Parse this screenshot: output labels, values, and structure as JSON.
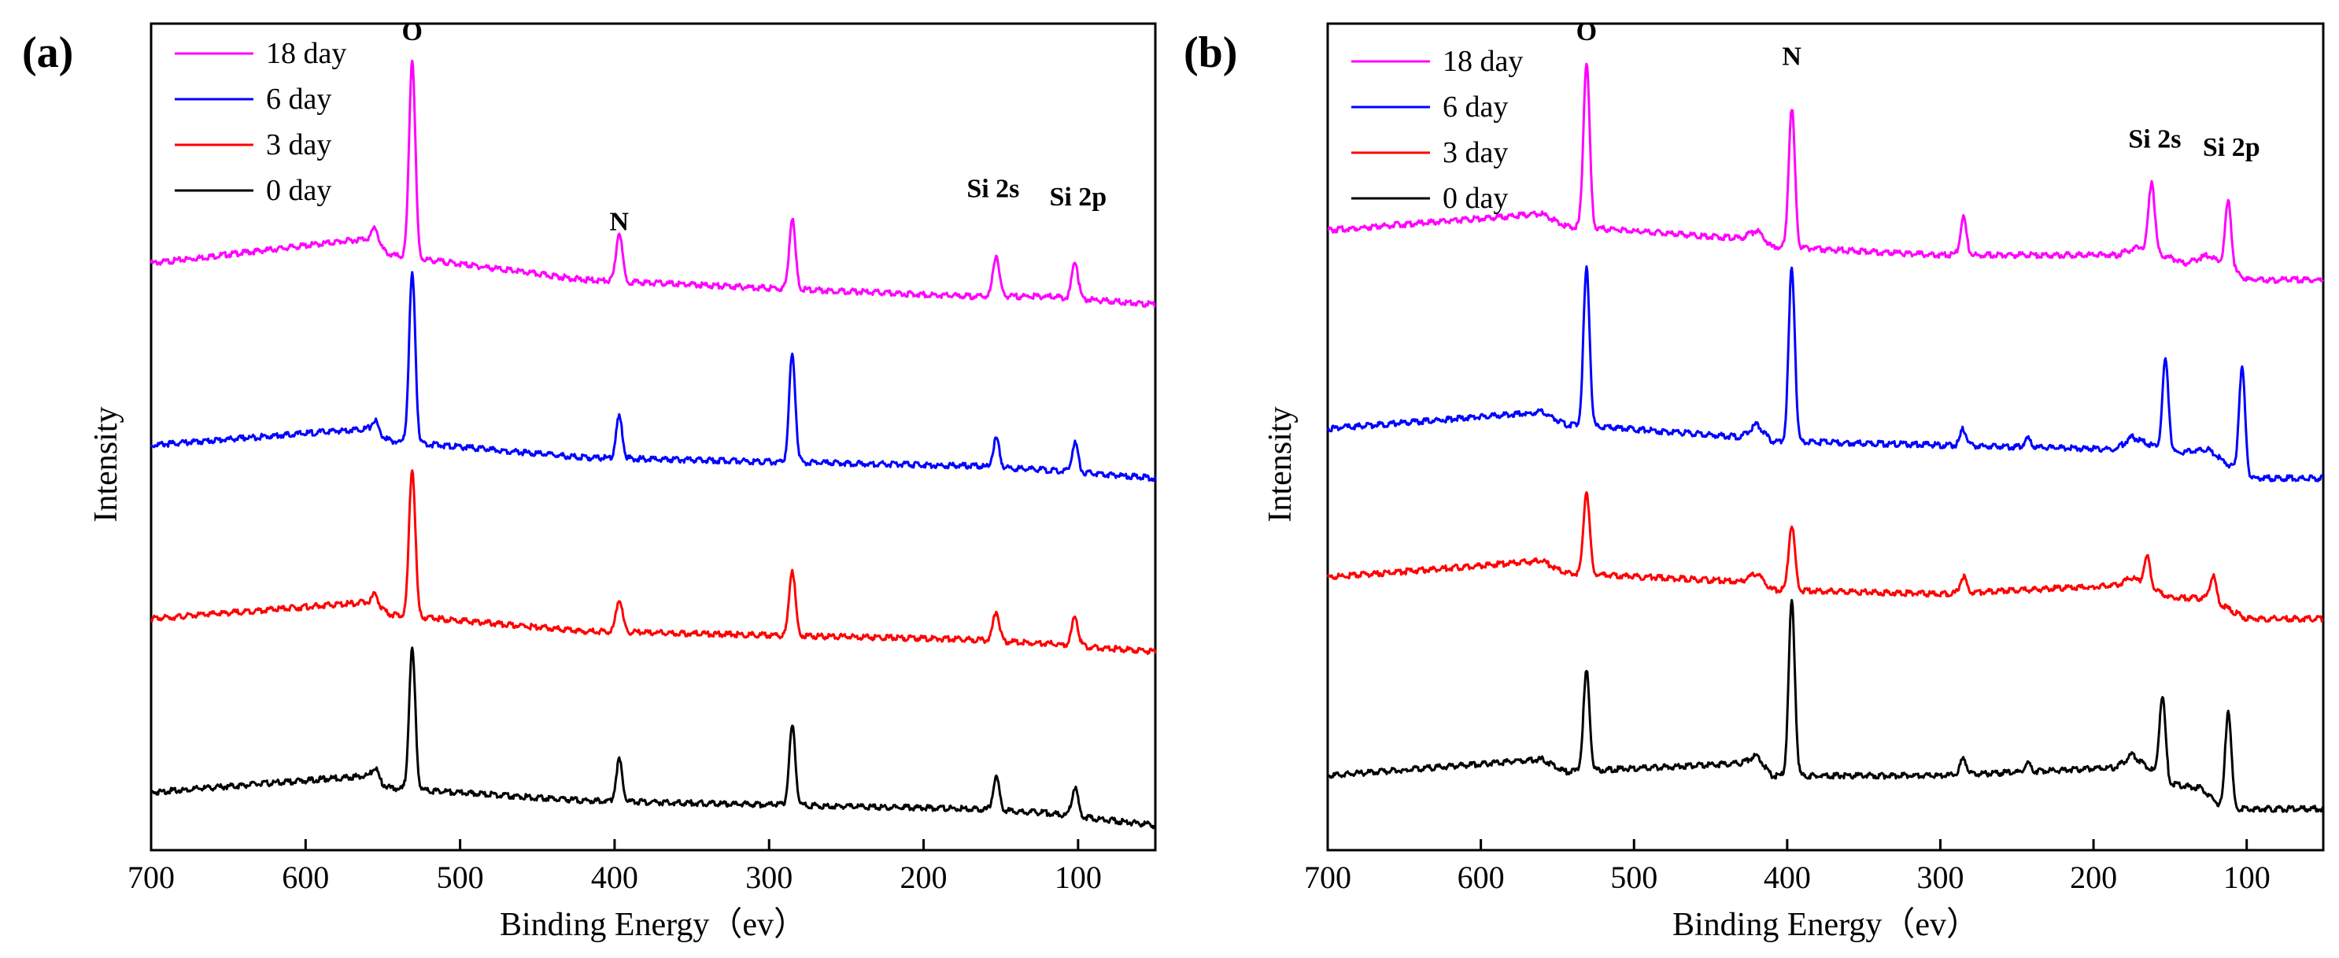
{
  "chart_data": [
    {
      "type": "line",
      "panel_label": "(a)",
      "xlabel": "Binding Energy（ev）",
      "ylabel": "Intensity",
      "xlim": [
        700,
        50
      ],
      "x_reversed": true,
      "ylim": [
        0,
        100
      ],
      "y_ticks_shown": false,
      "x_ticks": [
        700,
        600,
        500,
        400,
        300,
        200,
        100
      ],
      "x_tick_labels": [
        "700",
        "600",
        "500",
        "400",
        "300",
        "200",
        "100"
      ],
      "legend": {
        "position": "top-left",
        "entries": [
          "18 day",
          "6 day",
          "3 day",
          "0 day"
        ]
      },
      "series": [
        {
          "name": "18 day",
          "color": "#ff00ff",
          "baseline": [
            [
              700,
              71
            ],
            [
              560,
              74
            ],
            [
              545,
              72
            ],
            [
              420,
              69
            ],
            [
              300,
              68
            ],
            [
              170,
              67
            ],
            [
              120,
              67
            ],
            [
              50,
              66
            ]
          ],
          "peaks": [
            [
              531,
              24
            ],
            [
              555,
              2
            ],
            [
              397,
              6
            ],
            [
              285,
              8.5
            ],
            [
              153,
              5
            ],
            [
              102,
              4.5
            ]
          ]
        },
        {
          "name": "6 day",
          "color": "#0000ff",
          "baseline": [
            [
              700,
              49
            ],
            [
              560,
              51
            ],
            [
              545,
              49.5
            ],
            [
              420,
              47.5
            ],
            [
              300,
              47
            ],
            [
              170,
              46.5
            ],
            [
              120,
              46
            ],
            [
              50,
              45
            ]
          ],
          "peaks": [
            [
              531,
              20.5
            ],
            [
              555,
              1.5
            ],
            [
              397,
              5
            ],
            [
              285,
              13
            ],
            [
              153,
              3.5
            ],
            [
              102,
              3.5
            ]
          ]
        },
        {
          "name": "3 day",
          "color": "#ff0000",
          "baseline": [
            [
              700,
              28
            ],
            [
              560,
              30
            ],
            [
              545,
              28.5
            ],
            [
              420,
              26.5
            ],
            [
              300,
              26
            ],
            [
              170,
              25.5
            ],
            [
              120,
              25
            ],
            [
              50,
              24
            ]
          ],
          "peaks": [
            [
              531,
              18
            ],
            [
              555,
              1.5
            ],
            [
              397,
              4
            ],
            [
              285,
              8
            ],
            [
              153,
              3.5
            ],
            [
              102,
              3.5
            ]
          ]
        },
        {
          "name": "0 day",
          "color": "#000000",
          "baseline": [
            [
              700,
              7
            ],
            [
              560,
              9
            ],
            [
              545,
              7.5
            ],
            [
              420,
              6
            ],
            [
              300,
              5.5
            ],
            [
              170,
              5
            ],
            [
              120,
              4.5
            ],
            [
              50,
              3
            ]
          ],
          "peaks": [
            [
              531,
              17
            ],
            [
              555,
              1.5
            ],
            [
              397,
              5
            ],
            [
              285,
              9.5
            ],
            [
              153,
              4
            ],
            [
              102,
              3.5
            ]
          ]
        }
      ],
      "annotations": [
        {
          "text": "O",
          "x": 531,
          "y": 98
        },
        {
          "text": "N",
          "x": 397,
          "y": 75
        },
        {
          "text": "Si 2s",
          "x": 155,
          "y": 79
        },
        {
          "text": "Si 2p",
          "x": 100,
          "y": 78
        }
      ]
    },
    {
      "type": "line",
      "panel_label": "(b)",
      "xlabel": "Binding Energy（ev）",
      "ylabel": "Intensity",
      "xlim": [
        700,
        50
      ],
      "x_reversed": true,
      "ylim": [
        0,
        100
      ],
      "y_ticks_shown": false,
      "x_ticks": [
        700,
        600,
        500,
        400,
        300,
        200,
        100
      ],
      "x_tick_labels": [
        "700",
        "600",
        "500",
        "400",
        "300",
        "200",
        "100"
      ],
      "legend": {
        "position": "top-left",
        "entries": [
          "18 day",
          "6 day",
          "3 day",
          "0 day"
        ]
      },
      "series": [
        {
          "name": "18 day",
          "color": "#ff00ff",
          "baseline": [
            [
              700,
              75
            ],
            [
              560,
              77
            ],
            [
              545,
              75.5
            ],
            [
              430,
              74
            ],
            [
              420,
              75
            ],
            [
              410,
              73
            ],
            [
              300,
              72
            ],
            [
              185,
              72
            ],
            [
              170,
              73
            ],
            [
              140,
              71
            ],
            [
              125,
              72
            ],
            [
              100,
              69
            ],
            [
              50,
              69
            ]
          ],
          "peaks": [
            [
              531,
              20
            ],
            [
              397,
              17
            ],
            [
              285,
              4.5
            ],
            [
              162,
              8.5
            ],
            [
              112,
              8
            ]
          ]
        },
        {
          "name": "6 day",
          "color": "#0000ff",
          "baseline": [
            [
              700,
              51
            ],
            [
              560,
              53
            ],
            [
              545,
              51.5
            ],
            [
              430,
              50
            ],
            [
              420,
              51.5
            ],
            [
              410,
              49.5
            ],
            [
              300,
              49
            ],
            [
              185,
              48.5
            ],
            [
              175,
              50
            ],
            [
              150,
              48
            ],
            [
              125,
              48.5
            ],
            [
              100,
              45
            ],
            [
              50,
              45
            ]
          ],
          "peaks": [
            [
              531,
              19
            ],
            [
              397,
              21
            ],
            [
              285,
              2
            ],
            [
              243,
              1
            ],
            [
              153,
              11
            ],
            [
              103,
              13
            ]
          ]
        },
        {
          "name": "3 day",
          "color": "#ff0000",
          "baseline": [
            [
              700,
              33
            ],
            [
              560,
              35
            ],
            [
              545,
              33.5
            ],
            [
              430,
              32.5
            ],
            [
              420,
              33.5
            ],
            [
              410,
              31.5
            ],
            [
              300,
              31
            ],
            [
              185,
              32
            ],
            [
              175,
              33
            ],
            [
              150,
              30.5
            ],
            [
              125,
              30.5
            ],
            [
              100,
              28
            ],
            [
              50,
              28
            ]
          ],
          "peaks": [
            [
              531,
              10
            ],
            [
              397,
              8
            ],
            [
              285,
              2
            ],
            [
              165,
              3.5
            ],
            [
              122,
              3
            ]
          ]
        },
        {
          "name": "0 day",
          "color": "#000000",
          "baseline": [
            [
              700,
              9
            ],
            [
              560,
              11
            ],
            [
              545,
              9.5
            ],
            [
              430,
              10.5
            ],
            [
              420,
              11.5
            ],
            [
              410,
              9
            ],
            [
              300,
              9
            ],
            [
              185,
              10
            ],
            [
              175,
              11.5
            ],
            [
              150,
              8
            ],
            [
              130,
              7.5
            ],
            [
              115,
              5
            ],
            [
              50,
              5
            ]
          ],
          "peaks": [
            [
              531,
              12
            ],
            [
              397,
              21
            ],
            [
              285,
              2
            ],
            [
              243,
              1
            ],
            [
              155,
              10
            ],
            [
              112,
              12
            ]
          ]
        }
      ],
      "annotations": [
        {
          "text": "O",
          "x": 531,
          "y": 98
        },
        {
          "text": "N",
          "x": 397,
          "y": 95
        },
        {
          "text": "Si 2s",
          "x": 160,
          "y": 85
        },
        {
          "text": "Si 2p",
          "x": 110,
          "y": 84
        }
      ]
    }
  ]
}
